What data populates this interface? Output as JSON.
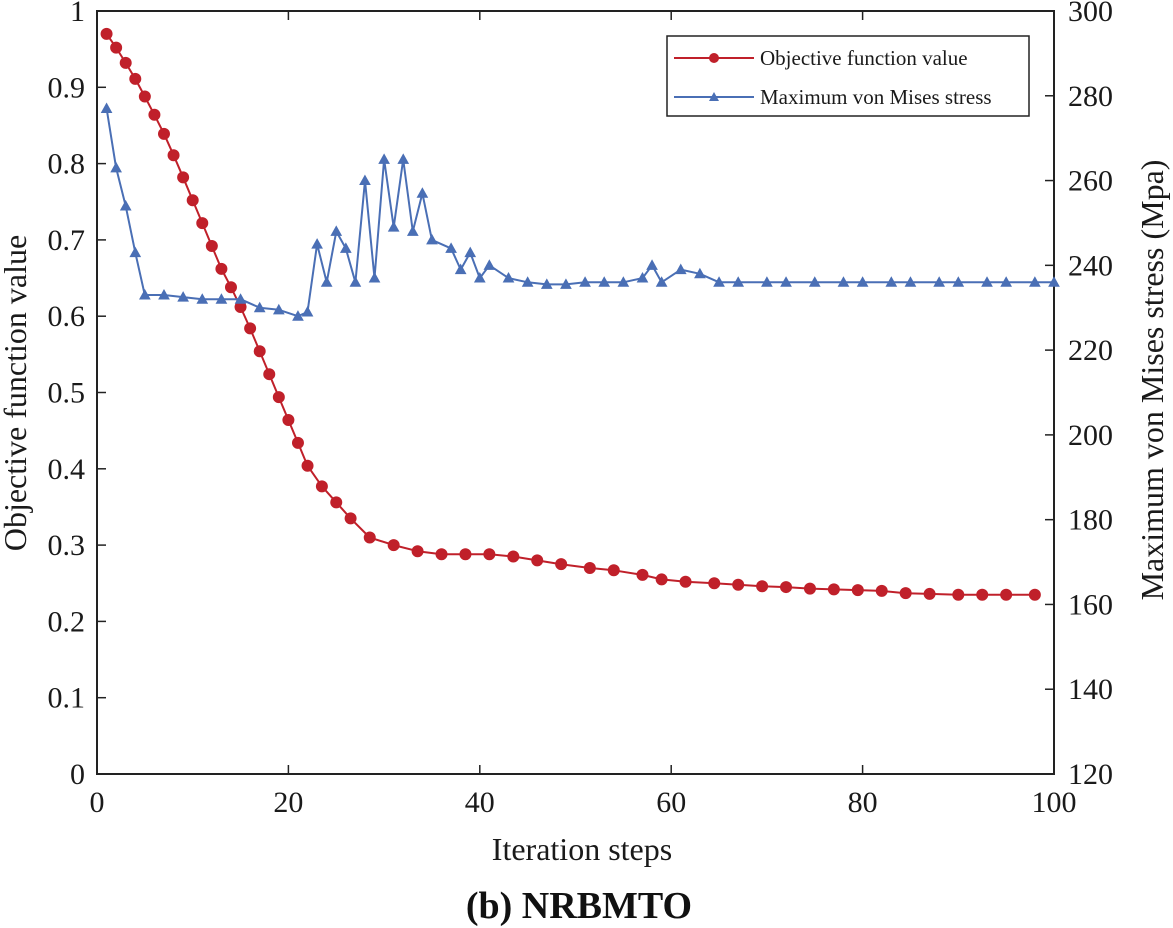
{
  "caption": "(b) NRBMTO",
  "colors": {
    "objective": "#c0202a",
    "stress": "#4a6fb5",
    "axis": "#222222"
  },
  "chart_data": {
    "type": "line",
    "xlabel": "Iteration steps",
    "ylabel_left": "Objective function value",
    "ylabel_right": "Maximum von Mises stress (Mpa)",
    "xlim": [
      0,
      100
    ],
    "ylim_left": [
      0,
      1
    ],
    "ylim_right": [
      120,
      300
    ],
    "xticks": [
      0,
      20,
      40,
      60,
      80,
      100
    ],
    "yticks_left": [
      0,
      0.1,
      0.2,
      0.3,
      0.4,
      0.5,
      0.6,
      0.7,
      0.8,
      0.9,
      1
    ],
    "yticks_right": [
      120,
      140,
      160,
      180,
      200,
      220,
      240,
      260,
      280,
      300
    ],
    "legend_position": "top-right",
    "legend": [
      "Objective function value",
      "Maximum von Mises stress"
    ],
    "series": [
      {
        "name": "Objective function value",
        "axis": "left",
        "marker": "circle",
        "x": [
          1,
          2,
          3,
          4,
          5,
          6,
          7,
          8,
          9,
          10,
          11,
          12,
          13,
          14,
          15,
          16,
          17,
          18,
          19,
          20,
          21,
          22,
          23.5,
          25,
          26.5,
          28.5,
          31,
          33.5,
          36,
          38.5,
          41,
          43.5,
          46,
          48.5,
          51.5,
          54,
          57,
          59,
          61.5,
          64.5,
          67,
          69.5,
          72,
          74.5,
          77,
          79.5,
          82,
          84.5,
          87,
          90,
          92.5,
          95,
          98
        ],
        "y": [
          0.97,
          0.952,
          0.932,
          0.911,
          0.888,
          0.864,
          0.839,
          0.811,
          0.782,
          0.752,
          0.722,
          0.692,
          0.662,
          0.638,
          0.612,
          0.584,
          0.554,
          0.524,
          0.494,
          0.464,
          0.434,
          0.404,
          0.377,
          0.356,
          0.335,
          0.31,
          0.3,
          0.292,
          0.288,
          0.288,
          0.288,
          0.285,
          0.28,
          0.275,
          0.27,
          0.267,
          0.261,
          0.255,
          0.252,
          0.25,
          0.248,
          0.246,
          0.245,
          0.243,
          0.242,
          0.241,
          0.24,
          0.237,
          0.236,
          0.235,
          0.235,
          0.235,
          0.235
        ]
      },
      {
        "name": "Maximum von Mises stress",
        "axis": "right",
        "marker": "triangle",
        "x": [
          1,
          2,
          3,
          4,
          5,
          7,
          9,
          11,
          13,
          15,
          17,
          19,
          21,
          22,
          23,
          24,
          25,
          26,
          27,
          28,
          29,
          30,
          31,
          32,
          33,
          34,
          35,
          37,
          38,
          39,
          40,
          41,
          43,
          45,
          47,
          49,
          51,
          53,
          55,
          57,
          58,
          59,
          61,
          63,
          65,
          67,
          70,
          72,
          75,
          78,
          80,
          83,
          85,
          88,
          90,
          93,
          95,
          98,
          100
        ],
        "y": [
          277,
          263,
          254,
          243,
          233,
          233,
          232.5,
          232,
          232,
          232,
          230,
          229.5,
          228,
          229,
          245,
          236,
          248,
          244,
          236,
          260,
          237,
          265,
          249,
          265,
          248,
          257,
          246,
          244,
          239,
          243,
          237,
          240,
          237,
          236,
          235.5,
          235.5,
          236,
          236,
          236,
          237,
          240,
          236,
          239,
          238,
          236,
          236,
          236,
          236,
          236,
          236,
          236,
          236,
          236,
          236,
          236,
          236,
          236,
          236,
          236
        ]
      }
    ]
  }
}
